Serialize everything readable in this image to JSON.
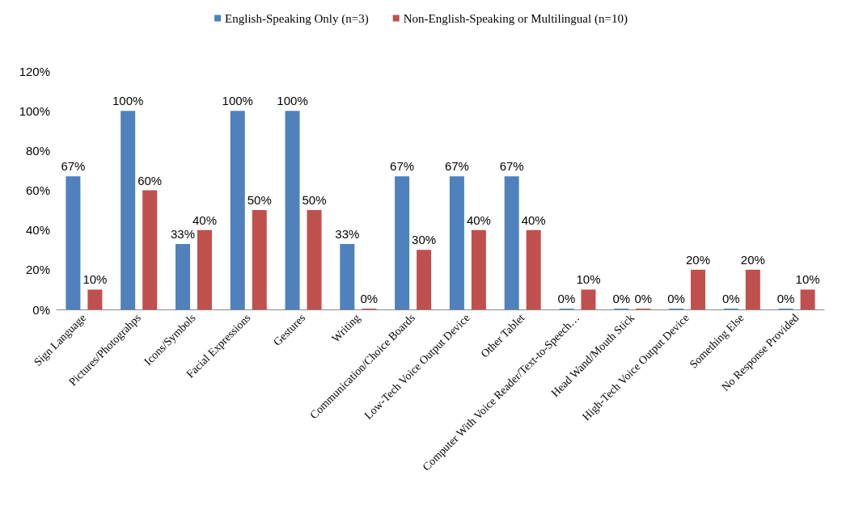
{
  "chart_data": {
    "type": "bar",
    "categories": [
      "Sign Language",
      "Pictures/Photograhps",
      "Icons/Symbols",
      "Facial Expressions",
      "Gestures",
      "Writing",
      "Communication/Choice Boards",
      "Low-Tech Voice Output Device",
      "Other Tablet",
      "Computer With Voice Reader/Text-to-Speech…",
      "Head Wand/Mouth Stick",
      "High-Tech Voice Output Device",
      "Something Else",
      "No Response Provided"
    ],
    "series": [
      {
        "name": "English-Speaking Only (n=3)",
        "color": "#4f81bd",
        "values": [
          67,
          100,
          33,
          100,
          100,
          33,
          67,
          67,
          67,
          0,
          0,
          0,
          0,
          0
        ],
        "value_labels": [
          "67%",
          "100%",
          "33%",
          "100%",
          "100%",
          "33%",
          "67%",
          "67%",
          "67%",
          "0%",
          "0%",
          "0%",
          "0%",
          "0%"
        ]
      },
      {
        "name": "Non-English-Speaking or Multilingual (n=10)",
        "color": "#c0504d",
        "values": [
          10,
          60,
          40,
          50,
          50,
          0,
          30,
          40,
          40,
          10,
          0,
          20,
          20,
          10
        ],
        "value_labels": [
          "10%",
          "60%",
          "40%",
          "50%",
          "50%",
          "0%",
          "30%",
          "40%",
          "40%",
          "10%",
          "0%",
          "20%",
          "20%",
          "10%"
        ]
      }
    ],
    "ylim": [
      0,
      120
    ],
    "yticks": [
      {
        "value": 0,
        "label": "0%"
      },
      {
        "value": 20,
        "label": "20%"
      },
      {
        "value": 40,
        "label": "40%"
      },
      {
        "value": 60,
        "label": "60%"
      },
      {
        "value": 80,
        "label": "80%"
      },
      {
        "value": 100,
        "label": "100%"
      },
      {
        "value": 120,
        "label": "120%"
      }
    ],
    "grid": false,
    "legend": "top"
  }
}
